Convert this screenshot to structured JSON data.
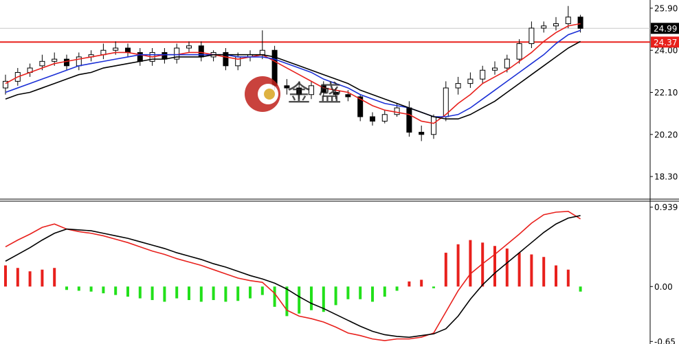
{
  "chart_data": [
    {
      "type": "candlestick",
      "open": [
        22.3,
        22.6,
        23.0,
        23.3,
        23.5,
        23.6,
        23.3,
        23.7,
        23.8,
        24.0,
        24.1,
        23.9,
        23.5,
        23.9,
        23.6,
        24.1,
        24.2,
        23.7,
        23.9,
        23.3,
        23.7,
        23.8,
        24.0,
        22.4,
        22.3,
        22.0,
        22.4,
        22.1,
        22.0,
        21.9,
        21.0,
        20.8,
        21.1,
        21.4,
        20.3,
        20.2,
        21.0,
        22.3,
        22.5,
        22.7,
        23.1,
        23.2,
        23.6,
        24.3,
        25.0,
        25.1,
        25.2,
        25.5
      ],
      "high": [
        22.9,
        23.2,
        23.4,
        23.8,
        23.9,
        23.8,
        23.9,
        24.0,
        24.3,
        24.4,
        24.3,
        24.1,
        24.1,
        24.1,
        24.3,
        24.4,
        24.4,
        24.0,
        24.1,
        23.9,
        24.0,
        24.9,
        24.2,
        22.7,
        22.6,
        22.6,
        22.6,
        22.3,
        22.2,
        22.0,
        21.2,
        21.3,
        21.6,
        21.7,
        20.6,
        21.1,
        22.6,
        22.8,
        23.0,
        23.3,
        23.5,
        23.8,
        24.5,
        25.3,
        25.3,
        25.5,
        26.0,
        25.6
      ],
      "low": [
        22.0,
        22.4,
        22.8,
        23.1,
        23.3,
        23.1,
        23.1,
        23.5,
        23.6,
        23.8,
        23.7,
        23.3,
        23.3,
        23.4,
        23.4,
        23.9,
        23.5,
        23.5,
        23.1,
        23.1,
        23.5,
        23.6,
        22.2,
        22.0,
        21.8,
        21.8,
        21.9,
        21.8,
        21.7,
        20.8,
        20.6,
        20.7,
        21.0,
        20.1,
        19.9,
        20.0,
        20.8,
        22.0,
        22.3,
        22.5,
        22.9,
        23.0,
        23.4,
        24.1,
        24.8,
        24.9,
        25.0,
        24.8
      ],
      "close": [
        22.6,
        23.0,
        23.2,
        23.5,
        23.6,
        23.3,
        23.7,
        23.8,
        24.0,
        24.1,
        23.9,
        23.5,
        23.9,
        23.6,
        24.1,
        24.2,
        23.7,
        23.9,
        23.3,
        23.7,
        23.8,
        24.0,
        22.4,
        22.3,
        22.0,
        22.4,
        22.1,
        22.0,
        21.9,
        21.0,
        20.8,
        21.1,
        21.4,
        20.3,
        20.2,
        21.0,
        22.3,
        22.5,
        22.7,
        23.1,
        23.2,
        23.6,
        24.3,
        25.0,
        25.1,
        25.2,
        25.5,
        24.99
      ],
      "series": [
        {
          "color": "#e8201c",
          "values": [
            22.5,
            22.8,
            23.0,
            23.2,
            23.4,
            23.5,
            23.6,
            23.7,
            23.8,
            23.9,
            23.9,
            23.8,
            23.7,
            23.8,
            23.8,
            23.9,
            23.9,
            23.8,
            23.7,
            23.6,
            23.7,
            23.8,
            23.5,
            23.2,
            22.9,
            22.6,
            22.3,
            22.2,
            22.1,
            21.8,
            21.5,
            21.3,
            21.2,
            21.1,
            20.8,
            20.7,
            21.1,
            21.6,
            22.0,
            22.5,
            22.8,
            23.1,
            23.5,
            23.9,
            24.4,
            24.8,
            25.1,
            25.2
          ]
        },
        {
          "color": "#1a2fd6",
          "values": [
            22.1,
            22.3,
            22.5,
            22.7,
            22.9,
            23.1,
            23.3,
            23.4,
            23.5,
            23.6,
            23.7,
            23.8,
            23.8,
            23.8,
            23.8,
            23.8,
            23.8,
            23.8,
            23.8,
            23.7,
            23.7,
            23.7,
            23.6,
            23.4,
            23.2,
            23.0,
            22.7,
            22.5,
            22.3,
            22.0,
            21.8,
            21.6,
            21.5,
            21.4,
            21.2,
            21.0,
            21.0,
            21.1,
            21.4,
            21.8,
            22.2,
            22.6,
            23.0,
            23.4,
            23.8,
            24.3,
            24.7,
            24.9
          ]
        },
        {
          "color": "#000000",
          "values": [
            21.8,
            22.0,
            22.1,
            22.3,
            22.5,
            22.7,
            22.9,
            23.0,
            23.2,
            23.3,
            23.4,
            23.5,
            23.6,
            23.6,
            23.7,
            23.7,
            23.7,
            23.8,
            23.8,
            23.8,
            23.8,
            23.8,
            23.7,
            23.5,
            23.3,
            23.1,
            22.9,
            22.7,
            22.5,
            22.2,
            22.0,
            21.8,
            21.6,
            21.4,
            21.2,
            21.0,
            20.9,
            20.9,
            21.1,
            21.4,
            21.7,
            22.1,
            22.5,
            22.9,
            23.3,
            23.7,
            24.1,
            24.4
          ]
        }
      ],
      "price_lines": [
        {
          "value": 24.99,
          "color": "#c8c8c8",
          "box": "#000000"
        },
        {
          "value": 24.37,
          "color": "#e8201c",
          "box": "#e8201c"
        }
      ],
      "watermark": "金 盛",
      "ylim": [
        17.28,
        26.27
      ],
      "yticks": [
        {
          "value": 25.9,
          "label": "25.90"
        },
        {
          "value": 24,
          "label": "24.00"
        },
        {
          "value": 22.1,
          "label": "22.10"
        },
        {
          "value": 20.2,
          "label": "20.20"
        },
        {
          "value": 18.3,
          "label": "18.30"
        }
      ]
    },
    {
      "type": "macd",
      "series": [
        {
          "color": "#e8201c",
          "values": [
            0.47,
            0.55,
            0.62,
            0.7,
            0.74,
            0.68,
            0.65,
            0.63,
            0.6,
            0.56,
            0.52,
            0.47,
            0.42,
            0.38,
            0.33,
            0.29,
            0.25,
            0.2,
            0.15,
            0.1,
            0.07,
            0.05,
            -0.08,
            -0.28,
            -0.35,
            -0.38,
            -0.42,
            -0.48,
            -0.55,
            -0.58,
            -0.62,
            -0.64,
            -0.62,
            -0.62,
            -0.6,
            -0.55,
            -0.3,
            -0.05,
            0.15,
            0.27,
            0.38,
            0.5,
            0.62,
            0.75,
            0.85,
            0.88,
            0.89,
            0.8
          ]
        },
        {
          "color": "#000000",
          "values": [
            0.3,
            0.38,
            0.46,
            0.55,
            0.63,
            0.68,
            0.67,
            0.66,
            0.63,
            0.6,
            0.57,
            0.53,
            0.49,
            0.45,
            0.4,
            0.36,
            0.32,
            0.27,
            0.23,
            0.18,
            0.13,
            0.09,
            0.04,
            -0.03,
            -0.12,
            -0.2,
            -0.26,
            -0.33,
            -0.4,
            -0.47,
            -0.53,
            -0.57,
            -0.59,
            -0.6,
            -0.58,
            -0.56,
            -0.5,
            -0.35,
            -0.15,
            0.02,
            0.16,
            0.28,
            0.4,
            0.52,
            0.64,
            0.74,
            0.81,
            0.84
          ]
        }
      ],
      "histogram": {
        "up_color": "#e8201c",
        "down_color": "#22e01a",
        "values": [
          0.25,
          0.22,
          0.18,
          0.2,
          0.22,
          -0.04,
          -0.05,
          -0.06,
          -0.08,
          -0.1,
          -0.12,
          -0.14,
          -0.16,
          -0.18,
          -0.14,
          -0.16,
          -0.18,
          -0.16,
          -0.18,
          -0.17,
          -0.14,
          -0.1,
          -0.24,
          -0.35,
          -0.32,
          -0.28,
          -0.3,
          -0.22,
          -0.15,
          -0.15,
          -0.18,
          -0.12,
          -0.05,
          0.06,
          0.08,
          -0.02,
          0.4,
          0.5,
          0.55,
          0.52,
          0.48,
          0.45,
          0.4,
          0.38,
          0.35,
          0.25,
          0.2,
          -0.06
        ]
      },
      "ylim": [
        -0.68,
        1.01
      ],
      "yticks": [
        0.939,
        {
          "value": 0,
          "label": "0.00"
        },
        -0.65
      ]
    }
  ]
}
